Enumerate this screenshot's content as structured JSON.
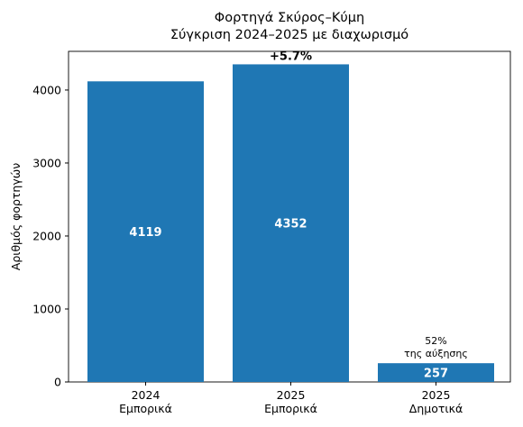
{
  "chart_data": {
    "type": "bar",
    "title": "Φορτηγά Σκύρος–Κύμη\nΣύγκριση 2024–2025 με διαχωρισμό",
    "y_label": "Αριθμός φορτηγών",
    "categories": [
      "2024\nΕμπορικά",
      "2025\nΕμπορικά",
      "2025\nΔημοτικά"
    ],
    "values": [
      4119,
      4352,
      257
    ],
    "color": "#1f77b4",
    "ylim": [
      0,
      4530
    ],
    "yticks": [
      0,
      1000,
      2000,
      3000,
      4000
    ],
    "grid": false,
    "annotations": [
      "+5.7%",
      "52%\nτης αύξησης"
    ]
  }
}
